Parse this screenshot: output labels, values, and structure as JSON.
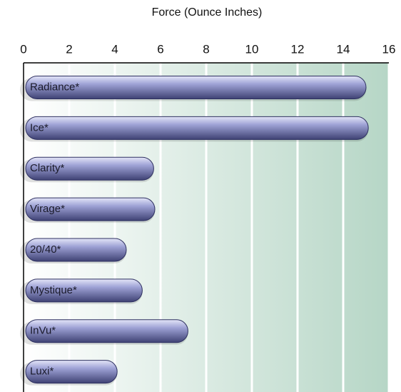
{
  "chart_data": {
    "type": "bar",
    "orientation": "horizontal",
    "xlabel": "Force (Ounce Inches)",
    "categories": [
      "Radiance*",
      "Ice*",
      "Clarity*",
      "Virage*",
      "20/40*",
      "Mystique*",
      "InVu*",
      "Luxi*"
    ],
    "values": [
      15.0,
      15.1,
      5.7,
      5.75,
      4.5,
      5.2,
      7.2,
      4.1
    ],
    "color": "#6f72b0",
    "xlim": [
      0,
      16
    ],
    "xticks": [
      0,
      2,
      4,
      6,
      8,
      10,
      12,
      14,
      16
    ],
    "grid": true
  }
}
